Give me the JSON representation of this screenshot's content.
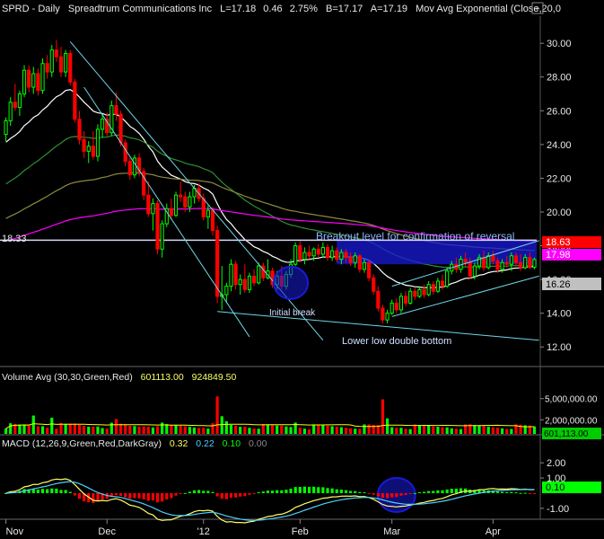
{
  "header": {
    "symbol": "SPRD",
    "interval": "Daily",
    "company": "Spreadtrum Communications Inc",
    "last": "L=17.18",
    "change": "0.46",
    "change_pct": "2.75%",
    "bid": "B=17.17",
    "ask": "A=17.19",
    "indicator": "Mov Avg Exponential (Close,20,0"
  },
  "colors": {
    "background": "#000000",
    "up": "#00ff00",
    "down": "#ff0000",
    "ema_white": "#ffffff",
    "ema_green": "#2f8f2f",
    "ema_olive": "#8c8a3c",
    "ema_magenta": "#ff00ff",
    "trendline": "#6fd6e8",
    "breakout_line": "#d8d8ff",
    "breakout_box": "#1a1ad8",
    "circle": "#1a1ad8",
    "macd_line": "#ffff66",
    "signal_line": "#4fd0ff",
    "volume_avg": "#ffff00"
  },
  "annotations": {
    "breakout": "Breakout level for confirmation of reversal",
    "initial_break": "Initial break",
    "double_bottom": "Lower low double bottom"
  },
  "left_label": "18.33",
  "price_tags": {
    "red": "18.63",
    "magenta": "17.98",
    "gray": "16.26"
  },
  "volume_header": {
    "label": "Volume Avg (30,30,Green,Red)",
    "value1": "601113.00",
    "value2": "924849.50"
  },
  "volume_tag": "601,113.00",
  "macd_header": {
    "label": "MACD (12,26,9,Green,Red,DarkGray)",
    "v1": "0.32",
    "v2": "0.22",
    "v3": "0.10",
    "v4": "0.00"
  },
  "macd_tag": "0.10",
  "chart_data": {
    "type": "candlestick",
    "price_axis": {
      "ticks": [
        "30.00",
        "28.00",
        "26.00",
        "24.00",
        "22.00",
        "20.00",
        "18.00",
        "16.00",
        "14.00",
        "12.00"
      ],
      "ylim": [
        11.0,
        31.5
      ]
    },
    "volume_axis": {
      "ticks": [
        "5,000,000.00",
        "2,000,000.00"
      ],
      "ylim": [
        0,
        7000000
      ]
    },
    "macd_axis": {
      "ticks": [
        "2.00",
        "1.00",
        "-1.00"
      ],
      "ylim": [
        -1.6,
        2.9
      ]
    },
    "x_labels": [
      "Nov",
      "Dec",
      "'12",
      "Feb",
      "Mar",
      "Apr"
    ],
    "x_label_days": [
      0,
      22,
      43,
      64,
      84,
      106
    ],
    "breakout_level": 18.33,
    "days": 116,
    "candles": [
      [
        24.6,
        25.6,
        24.2,
        25.4
      ],
      [
        25.4,
        26.8,
        25.1,
        26.5
      ],
      [
        26.5,
        27.6,
        26.0,
        26.2
      ],
      [
        26.2,
        27.2,
        25.7,
        27.0
      ],
      [
        27.0,
        28.7,
        26.8,
        28.4
      ],
      [
        28.4,
        28.7,
        27.1,
        27.4
      ],
      [
        27.4,
        28.6,
        27.0,
        28.2
      ],
      [
        28.2,
        28.5,
        26.9,
        27.2
      ],
      [
        27.2,
        29.1,
        27.0,
        28.8
      ],
      [
        28.8,
        29.3,
        27.9,
        28.3
      ],
      [
        28.3,
        29.9,
        28.0,
        29.6
      ],
      [
        29.6,
        30.2,
        28.9,
        29.2
      ],
      [
        29.2,
        29.8,
        28.0,
        28.3
      ],
      [
        28.3,
        29.6,
        28.0,
        29.4
      ],
      [
        29.4,
        29.6,
        27.5,
        27.7
      ],
      [
        27.7,
        27.9,
        25.3,
        25.5
      ],
      [
        25.5,
        26.0,
        24.0,
        24.3
      ],
      [
        24.3,
        24.8,
        23.2,
        23.6
      ],
      [
        23.6,
        24.2,
        22.9,
        23.9
      ],
      [
        23.9,
        24.8,
        23.1,
        23.3
      ],
      [
        23.3,
        25.2,
        23.0,
        24.9
      ],
      [
        24.9,
        25.8,
        24.4,
        25.5
      ],
      [
        25.5,
        25.9,
        24.5,
        24.7
      ],
      [
        24.7,
        26.6,
        24.5,
        26.3
      ],
      [
        26.3,
        27.1,
        25.4,
        25.8
      ],
      [
        25.8,
        26.0,
        23.9,
        24.1
      ],
      [
        24.1,
        24.3,
        22.7,
        23.0
      ],
      [
        23.0,
        23.2,
        21.9,
        22.2
      ],
      [
        22.2,
        23.4,
        22.0,
        23.2
      ],
      [
        23.2,
        23.5,
        22.1,
        22.4
      ],
      [
        22.4,
        22.6,
        20.7,
        21.0
      ],
      [
        21.0,
        21.8,
        19.7,
        19.9
      ],
      [
        19.9,
        20.8,
        18.9,
        20.5
      ],
      [
        20.5,
        20.7,
        17.5,
        17.8
      ],
      [
        17.8,
        19.5,
        17.3,
        19.3
      ],
      [
        19.3,
        20.5,
        19.1,
        20.2
      ],
      [
        20.2,
        20.8,
        19.6,
        19.8
      ],
      [
        19.8,
        21.2,
        19.7,
        21.0
      ],
      [
        21.0,
        21.8,
        20.6,
        20.9
      ],
      [
        20.9,
        21.2,
        20.0,
        20.3
      ],
      [
        20.3,
        21.2,
        20.0,
        20.9
      ],
      [
        20.9,
        21.6,
        20.5,
        21.4
      ],
      [
        21.4,
        21.7,
        20.6,
        20.8
      ],
      [
        20.8,
        21.1,
        19.5,
        19.7
      ],
      [
        19.7,
        20.4,
        19.0,
        20.1
      ],
      [
        20.1,
        20.3,
        18.6,
        18.9
      ],
      [
        18.9,
        19.2,
        14.6,
        15.0
      ],
      [
        15.0,
        16.8,
        14.2,
        15.1
      ],
      [
        15.1,
        15.8,
        14.6,
        15.6
      ],
      [
        15.6,
        17.2,
        15.3,
        16.9
      ],
      [
        16.9,
        17.1,
        15.4,
        15.7
      ],
      [
        15.7,
        16.3,
        15.1,
        16.0
      ],
      [
        16.0,
        16.9,
        15.2,
        15.4
      ],
      [
        15.4,
        16.4,
        15.2,
        16.2
      ],
      [
        16.2,
        16.6,
        15.6,
        15.8
      ],
      [
        15.8,
        17.0,
        15.7,
        16.8
      ],
      [
        16.8,
        17.0,
        15.9,
        16.1
      ],
      [
        16.1,
        17.2,
        16.0,
        16.5
      ],
      [
        16.5,
        16.7,
        15.5,
        15.7
      ],
      [
        15.7,
        16.5,
        15.4,
        16.2
      ],
      [
        16.2,
        16.8,
        15.4,
        15.6
      ],
      [
        15.6,
        16.5,
        15.4,
        16.3
      ],
      [
        16.3,
        17.2,
        16.1,
        16.9
      ],
      [
        16.9,
        18.2,
        16.8,
        18.0
      ],
      [
        18.0,
        18.3,
        17.0,
        17.2
      ],
      [
        17.2,
        17.9,
        16.9,
        17.6
      ],
      [
        17.6,
        18.0,
        17.2,
        17.4
      ],
      [
        17.4,
        17.9,
        17.1,
        17.8
      ],
      [
        17.8,
        18.1,
        17.3,
        17.5
      ],
      [
        17.5,
        18.2,
        17.3,
        17.9
      ],
      [
        17.9,
        18.1,
        17.1,
        17.3
      ],
      [
        17.3,
        18.0,
        17.1,
        17.7
      ],
      [
        17.7,
        17.9,
        17.0,
        17.2
      ],
      [
        17.2,
        17.8,
        16.9,
        17.6
      ],
      [
        17.6,
        17.8,
        17.0,
        17.3
      ],
      [
        17.3,
        17.6,
        16.8,
        17.0
      ],
      [
        17.0,
        17.6,
        16.7,
        17.4
      ],
      [
        17.4,
        17.5,
        16.4,
        16.6
      ],
      [
        16.6,
        17.2,
        16.4,
        17.0
      ],
      [
        17.0,
        17.1,
        15.9,
        16.1
      ],
      [
        16.1,
        16.3,
        15.1,
        15.3
      ],
      [
        15.3,
        15.6,
        14.1,
        14.3
      ],
      [
        14.3,
        14.5,
        13.4,
        13.6
      ],
      [
        13.6,
        14.2,
        13.4,
        14.0
      ],
      [
        14.0,
        14.8,
        13.9,
        14.6
      ],
      [
        14.6,
        14.9,
        14.0,
        14.2
      ],
      [
        14.2,
        15.2,
        14.0,
        15.0
      ],
      [
        15.0,
        15.3,
        14.4,
        14.6
      ],
      [
        14.6,
        15.5,
        14.5,
        15.3
      ],
      [
        15.3,
        15.5,
        14.8,
        15.0
      ],
      [
        15.0,
        15.6,
        14.9,
        15.4
      ],
      [
        15.4,
        15.7,
        14.9,
        15.1
      ],
      [
        15.1,
        15.9,
        15.0,
        15.7
      ],
      [
        15.7,
        15.9,
        15.1,
        15.3
      ],
      [
        15.3,
        16.1,
        15.2,
        15.9
      ],
      [
        15.9,
        16.3,
        15.4,
        15.6
      ],
      [
        15.6,
        16.7,
        15.5,
        16.5
      ],
      [
        16.5,
        17.1,
        16.3,
        16.9
      ],
      [
        16.9,
        17.3,
        16.4,
        16.6
      ],
      [
        16.6,
        17.4,
        16.4,
        17.2
      ],
      [
        17.2,
        17.6,
        16.8,
        17.0
      ],
      [
        17.0,
        17.3,
        16.0,
        16.2
      ],
      [
        16.2,
        17.0,
        16.0,
        16.8
      ],
      [
        16.8,
        17.5,
        16.6,
        17.3
      ],
      [
        17.3,
        17.7,
        16.5,
        16.7
      ],
      [
        16.7,
        17.6,
        16.6,
        17.4
      ],
      [
        17.4,
        17.7,
        16.9,
        17.1
      ],
      [
        17.1,
        17.3,
        16.4,
        16.6
      ],
      [
        16.6,
        17.2,
        16.4,
        17.0
      ],
      [
        17.0,
        17.4,
        16.7,
        16.9
      ],
      [
        16.9,
        17.6,
        16.5,
        17.4
      ],
      [
        17.4,
        17.6,
        16.8,
        17.0
      ],
      [
        17.0,
        17.5,
        16.5,
        16.7
      ],
      [
        16.7,
        17.5,
        16.6,
        17.3
      ],
      [
        17.3,
        17.6,
        16.6,
        16.72
      ],
      [
        16.72,
        17.3,
        16.6,
        17.18
      ]
    ],
    "ema_periods": [
      20,
      50,
      100,
      200
    ],
    "volume_avg_period": 30,
    "volume_spikes": {
      "6": 2600000,
      "10": 2300000,
      "24": 2100000,
      "46": 5300000,
      "47": 2500000,
      "48": 1800000,
      "82": 4900000,
      "83": 2200000,
      "63": 1600000
    },
    "macd_params": [
      12,
      26,
      9
    ],
    "trendlines": [
      {
        "from": [
          14,
          30.1
        ],
        "to": [
          69,
          12.4
        ]
      },
      {
        "from": [
          17,
          27.4
        ],
        "to": [
          53,
          12.6
        ]
      },
      {
        "from": [
          46,
          14.1
        ],
        "to": [
          116,
          12.4
        ]
      },
      {
        "from": [
          84,
          13.8
        ],
        "to": [
          116,
          16.2
        ]
      },
      {
        "from": [
          84,
          15.6
        ],
        "to": [
          116,
          18.3
        ]
      }
    ],
    "breakout_box": {
      "from_day": 72,
      "to_day": 116,
      "top": 18.33,
      "bottom": 16.9
    },
    "circles": [
      {
        "day": 62,
        "price": 15.8,
        "pane": "price"
      },
      {
        "day": 85,
        "macd": -0.12,
        "pane": "macd"
      }
    ]
  }
}
